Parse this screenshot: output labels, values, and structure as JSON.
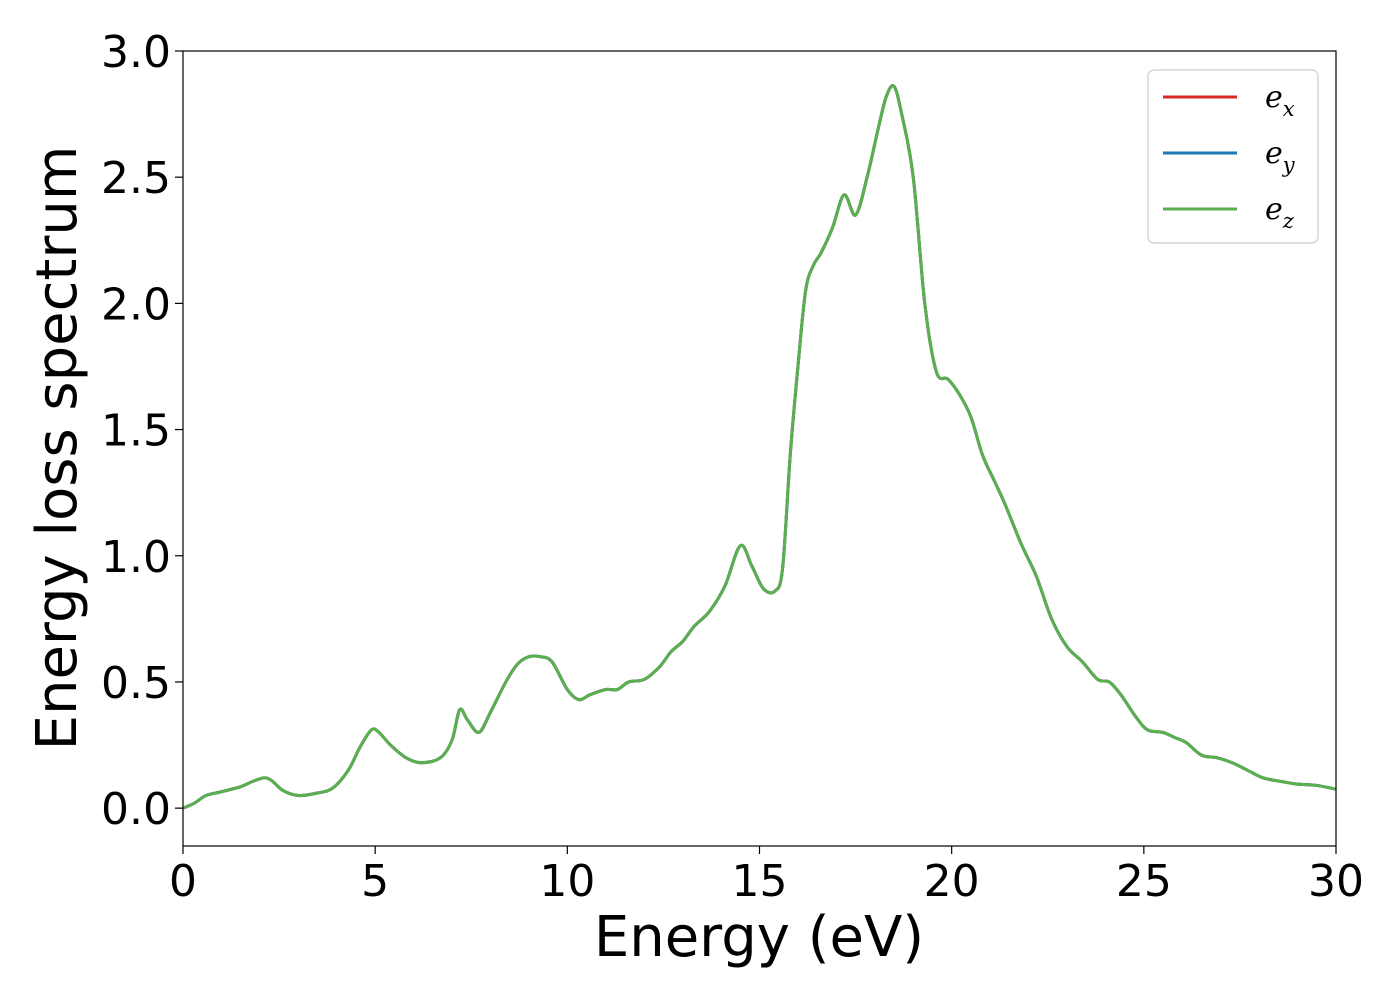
{
  "chart_data": {
    "type": "line",
    "xlabel": "Energy (eV)",
    "ylabel": "Energy loss spectrum",
    "xlim": [
      0,
      30
    ],
    "ylim": [
      -0.15,
      3.0
    ],
    "xticks": [
      0,
      5,
      10,
      15,
      20,
      25,
      30
    ],
    "xtick_labels": [
      "0",
      "5",
      "10",
      "15",
      "20",
      "25",
      "30"
    ],
    "yticks": [
      0.0,
      0.5,
      1.0,
      1.5,
      2.0,
      2.5,
      3.0
    ],
    "ytick_labels": [
      "0.0",
      "0.5",
      "1.0",
      "1.5",
      "2.0",
      "2.5",
      "3.0"
    ],
    "grid": false,
    "legend_position": "top-right",
    "x": [
      0,
      0.3,
      0.6,
      1.0,
      1.5,
      1.8,
      2.1,
      2.3,
      2.6,
      3.0,
      3.5,
      3.9,
      4.3,
      4.6,
      4.9,
      5.1,
      5.4,
      5.8,
      6.2,
      6.7,
      7.0,
      7.2,
      7.4,
      7.7,
      8.0,
      8.4,
      8.7,
      9.0,
      9.3,
      9.6,
      10.0,
      10.3,
      10.6,
      11.0,
      11.3,
      11.6,
      12.0,
      12.4,
      12.7,
      13.0,
      13.3,
      13.7,
      14.1,
      14.5,
      14.8,
      15.1,
      15.4,
      15.6,
      15.8,
      16.0,
      16.2,
      16.4,
      16.6,
      16.9,
      17.2,
      17.5,
      17.8,
      18.1,
      18.3,
      18.5,
      18.7,
      19.0,
      19.3,
      19.6,
      19.9,
      20.2,
      20.5,
      20.8,
      21.1,
      21.4,
      21.8,
      22.2,
      22.6,
      23.0,
      23.4,
      23.8,
      24.1,
      24.4,
      24.8,
      25.1,
      25.5,
      25.8,
      26.1,
      26.5,
      26.9,
      27.3,
      27.7,
      28.1,
      28.6,
      29.0,
      29.5,
      30.0
    ],
    "series": [
      {
        "name": "e_x",
        "color": "#d62728",
        "values": [
          0.0,
          0.02,
          0.05,
          0.065,
          0.085,
          0.105,
          0.12,
          0.11,
          0.07,
          0.05,
          0.06,
          0.08,
          0.15,
          0.24,
          0.31,
          0.3,
          0.25,
          0.2,
          0.18,
          0.2,
          0.27,
          0.39,
          0.35,
          0.3,
          0.38,
          0.5,
          0.57,
          0.6,
          0.6,
          0.58,
          0.47,
          0.43,
          0.45,
          0.47,
          0.47,
          0.5,
          0.51,
          0.56,
          0.62,
          0.66,
          0.72,
          0.78,
          0.88,
          1.04,
          0.96,
          0.87,
          0.86,
          0.95,
          1.4,
          1.75,
          2.05,
          2.15,
          2.2,
          2.3,
          2.43,
          2.35,
          2.5,
          2.7,
          2.82,
          2.86,
          2.75,
          2.5,
          2.0,
          1.73,
          1.7,
          1.64,
          1.55,
          1.4,
          1.3,
          1.2,
          1.05,
          0.92,
          0.75,
          0.64,
          0.58,
          0.51,
          0.5,
          0.45,
          0.36,
          0.31,
          0.3,
          0.28,
          0.26,
          0.21,
          0.2,
          0.18,
          0.15,
          0.12,
          0.105,
          0.095,
          0.09,
          0.075
        ]
      },
      {
        "name": "e_y",
        "color": "#1f77b4",
        "values": [
          0.0,
          0.02,
          0.05,
          0.065,
          0.085,
          0.105,
          0.12,
          0.11,
          0.07,
          0.05,
          0.06,
          0.08,
          0.15,
          0.24,
          0.31,
          0.3,
          0.25,
          0.2,
          0.18,
          0.2,
          0.27,
          0.39,
          0.35,
          0.3,
          0.38,
          0.5,
          0.57,
          0.6,
          0.6,
          0.58,
          0.47,
          0.43,
          0.45,
          0.47,
          0.47,
          0.5,
          0.51,
          0.56,
          0.62,
          0.66,
          0.72,
          0.78,
          0.88,
          1.04,
          0.96,
          0.87,
          0.86,
          0.95,
          1.4,
          1.75,
          2.05,
          2.15,
          2.2,
          2.3,
          2.43,
          2.35,
          2.5,
          2.7,
          2.82,
          2.86,
          2.75,
          2.5,
          2.0,
          1.73,
          1.7,
          1.64,
          1.55,
          1.4,
          1.3,
          1.2,
          1.05,
          0.92,
          0.75,
          0.64,
          0.58,
          0.51,
          0.5,
          0.45,
          0.36,
          0.31,
          0.3,
          0.28,
          0.26,
          0.21,
          0.2,
          0.18,
          0.15,
          0.12,
          0.105,
          0.095,
          0.09,
          0.075
        ]
      },
      {
        "name": "e_z",
        "color": "#5aaf4f",
        "values": [
          0.0,
          0.02,
          0.05,
          0.065,
          0.085,
          0.105,
          0.12,
          0.11,
          0.07,
          0.05,
          0.06,
          0.08,
          0.15,
          0.24,
          0.31,
          0.3,
          0.25,
          0.2,
          0.18,
          0.2,
          0.27,
          0.39,
          0.35,
          0.3,
          0.38,
          0.5,
          0.57,
          0.6,
          0.6,
          0.58,
          0.47,
          0.43,
          0.45,
          0.47,
          0.47,
          0.5,
          0.51,
          0.56,
          0.62,
          0.66,
          0.72,
          0.78,
          0.88,
          1.04,
          0.96,
          0.87,
          0.86,
          0.95,
          1.4,
          1.75,
          2.05,
          2.15,
          2.2,
          2.3,
          2.43,
          2.35,
          2.5,
          2.7,
          2.82,
          2.86,
          2.75,
          2.5,
          2.0,
          1.73,
          1.7,
          1.64,
          1.55,
          1.4,
          1.3,
          1.2,
          1.05,
          0.92,
          0.75,
          0.64,
          0.58,
          0.51,
          0.5,
          0.45,
          0.36,
          0.31,
          0.3,
          0.28,
          0.26,
          0.21,
          0.2,
          0.18,
          0.15,
          0.12,
          0.105,
          0.095,
          0.09,
          0.075
        ]
      }
    ],
    "legend": [
      {
        "base": "e",
        "sub": "x",
        "color": "#d62728"
      },
      {
        "base": "e",
        "sub": "y",
        "color": "#1f77b4"
      },
      {
        "base": "e",
        "sub": "z",
        "color": "#5aaf4f"
      }
    ]
  }
}
